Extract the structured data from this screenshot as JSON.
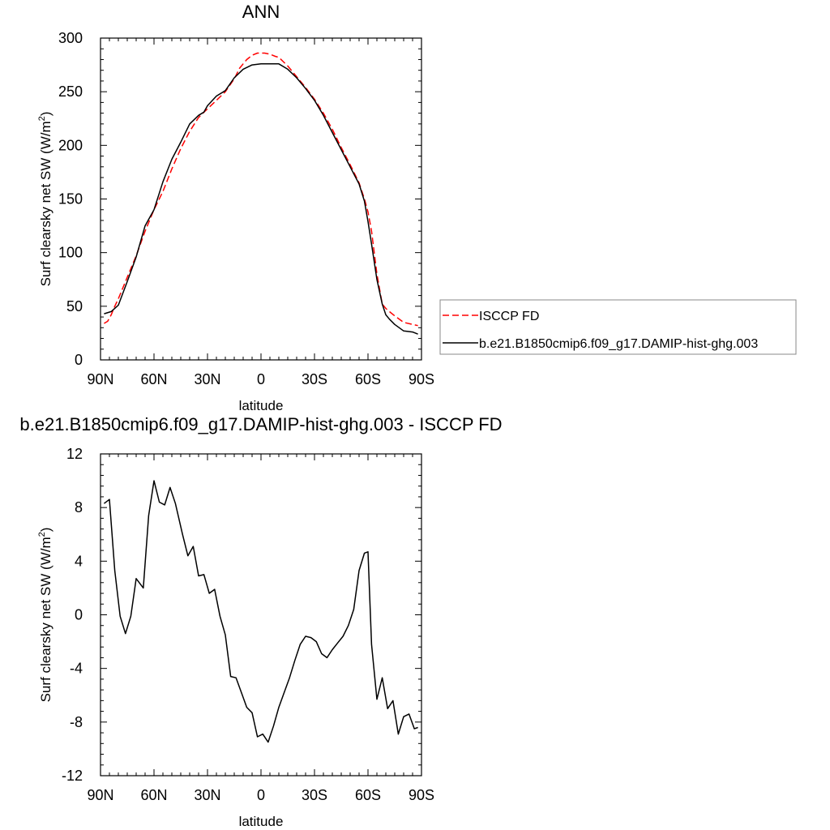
{
  "chart_data": [
    {
      "type": "line",
      "title": "ANN",
      "xlabel": "latitude",
      "ylabel": "Surf clearsky net SW (W/m",
      "ylabel_sup": "2",
      "ylabel_end": ")",
      "xlim": [
        -90,
        90
      ],
      "ylim": [
        0,
        300
      ],
      "x_ticks": [
        -90,
        -60,
        -30,
        0,
        30,
        60,
        90
      ],
      "x_tick_labels": [
        "90N",
        "60N",
        "30N",
        "0",
        "30S",
        "60S",
        "90S"
      ],
      "y_ticks": [
        0,
        50,
        100,
        150,
        200,
        250,
        300
      ],
      "y_tick_labels": [
        "0",
        "50",
        "100",
        "150",
        "200",
        "250",
        "300"
      ],
      "grid": false,
      "legend_position": "right",
      "series": [
        {
          "name": "ISCCP FD",
          "color": "#ff0000",
          "dash": "dashed",
          "x": [
            -88,
            -86,
            -84,
            -82,
            -80,
            -75,
            -70,
            -65,
            -60,
            -55,
            -50,
            -45,
            -40,
            -35,
            -30,
            -25,
            -20,
            -15,
            -12,
            -8,
            -5,
            -2,
            0,
            2,
            5,
            8,
            10,
            15,
            20,
            25,
            30,
            35,
            40,
            45,
            50,
            55,
            58,
            60,
            62,
            65,
            68,
            70,
            72,
            75,
            80,
            85,
            88
          ],
          "y": [
            34,
            36,
            42,
            50,
            57,
            77,
            97,
            120,
            140,
            157,
            178,
            197,
            213,
            226,
            234,
            242,
            250,
            262,
            272,
            280,
            284,
            286,
            286,
            286,
            285,
            283,
            282,
            274,
            264,
            254,
            243,
            230,
            215,
            198,
            182,
            165,
            150,
            138,
            120,
            80,
            52,
            48,
            45,
            41,
            35,
            33,
            32
          ]
        },
        {
          "name": "b.e21.B1850cmip6.f09_g17.DAMIP-hist-ghg.003",
          "color": "#000000",
          "dash": "solid",
          "x": [
            -88,
            -84,
            -80,
            -75,
            -70,
            -65,
            -60,
            -55,
            -50,
            -45,
            -40,
            -35,
            -32,
            -30,
            -25,
            -20,
            -15,
            -10,
            -5,
            0,
            5,
            10,
            15,
            20,
            25,
            30,
            35,
            40,
            45,
            50,
            55,
            58,
            60,
            62,
            65,
            68,
            70,
            72,
            75,
            80,
            85,
            88
          ],
          "y": [
            43,
            45,
            51,
            73,
            96,
            125,
            140,
            166,
            187,
            203,
            220,
            228,
            231,
            237,
            246,
            251,
            263,
            271,
            275,
            276,
            276,
            276,
            271,
            263,
            253,
            242,
            228,
            212,
            196,
            180,
            164,
            148,
            129,
            108,
            75,
            52,
            42,
            38,
            33,
            27,
            26,
            24
          ]
        }
      ]
    },
    {
      "type": "line",
      "title": "b.e21.B1850cmip6.f09_g17.DAMIP-hist-ghg.003 - ISCCP FD",
      "xlabel": "latitude",
      "ylabel": "Surf clearsky net SW (W/m",
      "ylabel_sup": "2",
      "ylabel_end": ")",
      "xlim": [
        -90,
        90
      ],
      "ylim": [
        -12,
        12
      ],
      "x_ticks": [
        -90,
        -60,
        -30,
        0,
        30,
        60,
        90
      ],
      "x_tick_labels": [
        "90N",
        "60N",
        "30N",
        "0",
        "30S",
        "60S",
        "90S"
      ],
      "y_ticks": [
        -12,
        -8,
        -4,
        0,
        4,
        8,
        12
      ],
      "y_tick_labels": [
        "-12",
        "-8",
        "-4",
        "0",
        "4",
        "8",
        "12"
      ],
      "grid": false,
      "series": [
        {
          "color": "#000000",
          "dash": "solid",
          "x": [
            -88,
            -85,
            -82,
            -79,
            -76,
            -73,
            -70,
            -66,
            -63,
            -60,
            -57,
            -54,
            -51,
            -48,
            -44,
            -41,
            -38,
            -35,
            -32,
            -29,
            -26,
            -23,
            -20,
            -17,
            -14,
            -11,
            -8,
            -5,
            -2,
            1,
            4,
            7,
            10,
            13,
            16,
            19,
            22,
            25,
            28,
            31,
            34,
            37,
            40,
            43,
            46,
            49,
            52,
            55,
            58,
            60,
            62,
            65,
            68,
            71,
            74,
            77,
            80,
            83,
            86,
            88
          ],
          "y": [
            8.3,
            8.6,
            3.3,
            -0.1,
            -1.4,
            -0.1,
            2.7,
            2.0,
            7.4,
            10.0,
            8.4,
            8.2,
            9.5,
            8.3,
            6.0,
            4.4,
            5.1,
            2.9,
            3.0,
            1.6,
            1.9,
            -0.1,
            -1.5,
            -4.6,
            -4.7,
            -5.8,
            -6.9,
            -7.3,
            -9.1,
            -8.9,
            -9.5,
            -8.3,
            -6.9,
            -5.8,
            -4.7,
            -3.4,
            -2.2,
            -1.6,
            -1.7,
            -2.0,
            -2.9,
            -3.2,
            -2.6,
            -2.1,
            -1.6,
            -0.8,
            0.4,
            3.3,
            4.6,
            4.7,
            -2.2,
            -6.3,
            -4.7,
            -7.0,
            -6.4,
            -8.9,
            -7.6,
            -7.4,
            -8.5,
            -8.4
          ]
        }
      ]
    }
  ]
}
